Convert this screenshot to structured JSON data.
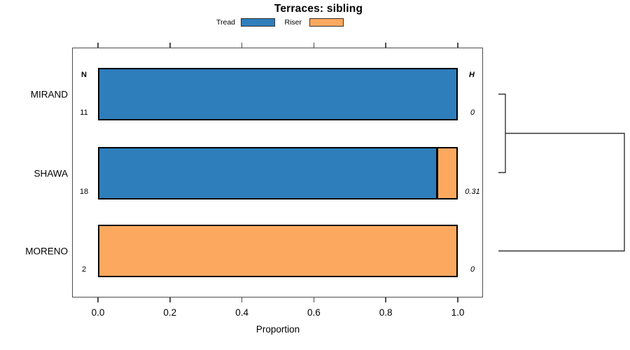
{
  "title": "Terraces: sibling",
  "legend": [
    {
      "label": "Tread",
      "color": "#2E7EBC"
    },
    {
      "label": "Riser",
      "color": "#FCA95F"
    }
  ],
  "columns": {
    "n_header": "N",
    "h_header": "H"
  },
  "chart_data": {
    "type": "bar",
    "orientation": "horizontal-stacked",
    "title": "Terraces: sibling",
    "categories": [
      "MIRAND",
      "SHAWA",
      "MORENO"
    ],
    "series": [
      {
        "name": "Tread",
        "color": "#2E7EBC",
        "values": [
          1.0,
          0.944,
          0.0
        ]
      },
      {
        "name": "Riser",
        "color": "#FCA95F",
        "values": [
          0.0,
          0.056,
          1.0
        ]
      }
    ],
    "n_values": [
      "11",
      "18",
      "2"
    ],
    "h_values": [
      "0",
      "0.31",
      "0"
    ],
    "xlabel": "Proportion",
    "xlim": [
      0,
      1
    ],
    "xticks": [
      "0.0",
      "0.2",
      "0.4",
      "0.6",
      "0.8",
      "1.0"
    ],
    "grid": false,
    "legend_position": "top",
    "dendrogram": {
      "side": "right",
      "joins": [
        {
          "members": [
            "MIRAND",
            "SHAWA"
          ],
          "relative_height": 0.15
        },
        {
          "members": [
            "MIRAND+SHAWA",
            "MORENO"
          ],
          "relative_height": 0.96
        }
      ]
    }
  }
}
